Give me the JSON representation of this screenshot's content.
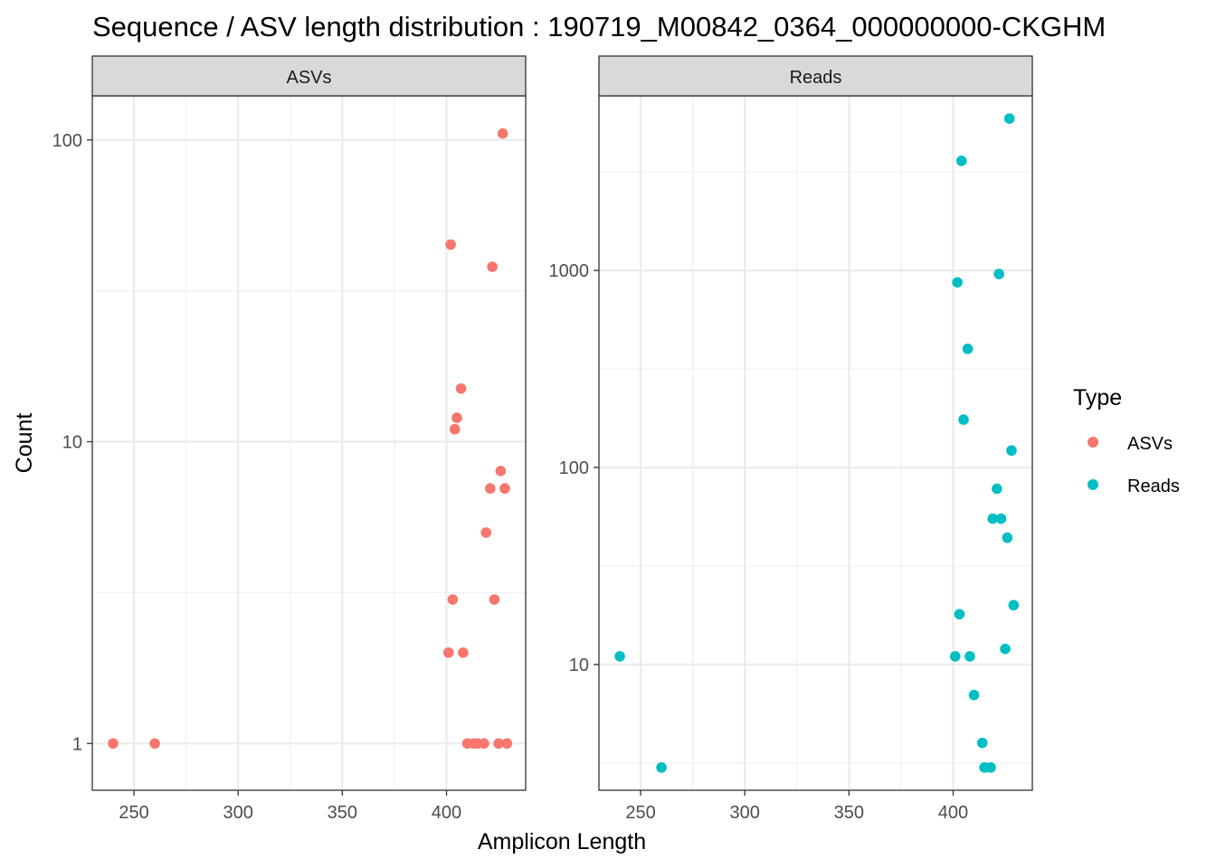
{
  "chart_data": {
    "type": "scatter",
    "title": "Sequence / ASV length distribution : 190719_M00842_0364_000000000-CKGHM",
    "xlabel": "Amplicon Length",
    "ylabel": "Count",
    "y_scale": "log10",
    "x_ticks": [
      250,
      300,
      350,
      400
    ],
    "grid": true,
    "legend": {
      "title": "Type",
      "position": "right",
      "entries": [
        {
          "label": "ASVs",
          "color": "#F8766D"
        },
        {
          "label": "Reads",
          "color": "#00BFC4"
        }
      ]
    },
    "facets": [
      {
        "strip_label": "ASVs",
        "color": "#F8766D",
        "xlim": [
          230,
          438
        ],
        "ylim": [
          0.7,
          140
        ],
        "y_ticks": [
          1,
          10,
          100
        ],
        "points": [
          {
            "x": 240,
            "y": 1
          },
          {
            "x": 260,
            "y": 1
          },
          {
            "x": 401,
            "y": 2
          },
          {
            "x": 402,
            "y": 45
          },
          {
            "x": 403,
            "y": 3
          },
          {
            "x": 404,
            "y": 11
          },
          {
            "x": 405,
            "y": 12
          },
          {
            "x": 407,
            "y": 15
          },
          {
            "x": 408,
            "y": 2
          },
          {
            "x": 410,
            "y": 1
          },
          {
            "x": 413,
            "y": 1
          },
          {
            "x": 415,
            "y": 1
          },
          {
            "x": 418,
            "y": 1
          },
          {
            "x": 419,
            "y": 5
          },
          {
            "x": 421,
            "y": 7
          },
          {
            "x": 422,
            "y": 38
          },
          {
            "x": 423,
            "y": 3
          },
          {
            "x": 425,
            "y": 1
          },
          {
            "x": 426,
            "y": 8
          },
          {
            "x": 427,
            "y": 105
          },
          {
            "x": 428,
            "y": 7
          },
          {
            "x": 429,
            "y": 1
          }
        ]
      },
      {
        "strip_label": "Reads",
        "color": "#00BFC4",
        "xlim": [
          230,
          438
        ],
        "ylim": [
          2.3,
          7700
        ],
        "y_ticks": [
          10,
          100,
          1000
        ],
        "points": [
          {
            "x": 240,
            "y": 11
          },
          {
            "x": 260,
            "y": 3
          },
          {
            "x": 401,
            "y": 11
          },
          {
            "x": 402,
            "y": 870
          },
          {
            "x": 403,
            "y": 18
          },
          {
            "x": 404,
            "y": 3600
          },
          {
            "x": 405,
            "y": 175
          },
          {
            "x": 407,
            "y": 400
          },
          {
            "x": 408,
            "y": 11
          },
          {
            "x": 410,
            "y": 7
          },
          {
            "x": 414,
            "y": 4
          },
          {
            "x": 415,
            "y": 3
          },
          {
            "x": 418,
            "y": 3
          },
          {
            "x": 419,
            "y": 55
          },
          {
            "x": 421,
            "y": 78
          },
          {
            "x": 422,
            "y": 960
          },
          {
            "x": 423,
            "y": 55
          },
          {
            "x": 425,
            "y": 12
          },
          {
            "x": 426,
            "y": 44
          },
          {
            "x": 427,
            "y": 5900
          },
          {
            "x": 428,
            "y": 122
          },
          {
            "x": 429,
            "y": 20
          }
        ]
      }
    ]
  }
}
